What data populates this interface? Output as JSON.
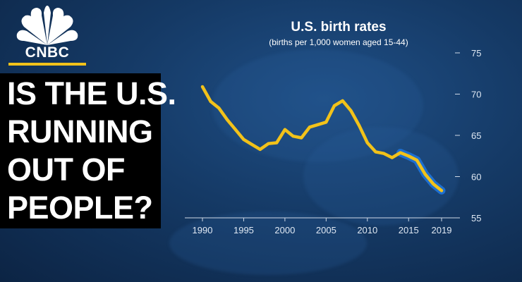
{
  "brand": {
    "logo_text": "CNBC",
    "peacock_colors": [
      "#ffffff"
    ],
    "accent_color": "#f2c21a",
    "icon": "peacock-icon"
  },
  "headline": {
    "lines": [
      "IS THE U.S.",
      "RUNNING",
      "OUT OF",
      "PEOPLE?"
    ]
  },
  "chart_data": {
    "type": "line",
    "title": "U.S. birth rates",
    "subtitle": "(births per 1,000 women aged 15-44)",
    "xlabel": "",
    "ylabel": "",
    "xlim": [
      1989,
      2020
    ],
    "ylim": [
      55,
      75
    ],
    "x_ticks": [
      1990,
      1995,
      2000,
      2005,
      2010,
      2015,
      2019
    ],
    "y_ticks": [
      55,
      60,
      65,
      70,
      75
    ],
    "y_axis_position": "right",
    "grid": false,
    "series": [
      {
        "color": "#f2c21a",
        "x": [
          1990,
          1991,
          1992,
          1993,
          1994,
          1995,
          1996,
          1997,
          1998,
          1999,
          2000,
          2001,
          2002,
          2003,
          2004,
          2005,
          2006,
          2007,
          2008,
          2009,
          2010,
          2011,
          2012,
          2013,
          2014,
          2015,
          2016,
          2017,
          2018,
          2019
        ],
        "y": [
          70.9,
          69.1,
          68.3,
          66.9,
          65.7,
          64.5,
          63.9,
          63.3,
          64.0,
          64.1,
          65.7,
          64.9,
          64.7,
          66.0,
          66.3,
          66.6,
          68.6,
          69.2,
          68.0,
          66.2,
          64.1,
          63.0,
          62.8,
          62.3,
          62.9,
          62.5,
          62.0,
          60.3,
          59.1,
          58.3
        ]
      }
    ],
    "highlight": {
      "color": "#1d6fd1",
      "x_start": 2014
    }
  }
}
